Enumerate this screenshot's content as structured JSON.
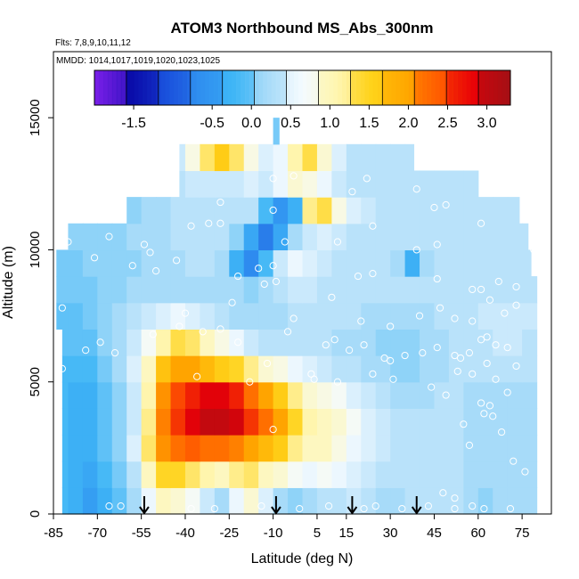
{
  "chart_data": {
    "type": "heatmap",
    "title": "ATOM3 Northbound MS_Abs_300nm",
    "flights_text": "Flts: 7,8,9,10,11,12",
    "dates_text": "MMDD: 1014,1017,1019,1020,1023,1025",
    "xlabel": "Latitude (deg N)",
    "ylabel": "Altitude (m)",
    "xlim": [
      -85,
      85
    ],
    "ylim": [
      0,
      17500
    ],
    "x_ticks": [
      -85,
      -70,
      -55,
      -40,
      -25,
      -10,
      5,
      15,
      30,
      45,
      60,
      75
    ],
    "y_ticks": [
      0,
      5000,
      10000,
      15000
    ],
    "colorbar": {
      "range": [
        -2.0,
        3.3
      ],
      "tick_values": [
        -1.5,
        -0.5,
        0.0,
        0.5,
        1.0,
        1.5,
        2.0,
        2.5,
        3.0
      ],
      "colors": [
        "#7a1fe8",
        "#0a0aa8",
        "#1a4fdc",
        "#2f8ff0",
        "#3fb6f6",
        "#a9dcf9",
        "#f4fbff",
        "#fff6b0",
        "#ffd21a",
        "#ffa800",
        "#ff5a00",
        "#e80008",
        "#a41015"
      ]
    },
    "arrows_latitude": [
      -54,
      -9,
      17,
      39
    ],
    "field": {
      "lat_min": -85,
      "lat_step": 5,
      "alt_min": 0,
      "alt_step": 1000,
      "values": [
        [
          -0.2,
          -0.3,
          -0.5,
          -0.3,
          -0.1,
          0.2,
          0.6,
          1.0,
          0.9,
          0.7,
          0.4,
          0.2,
          0.6,
          0.9,
          0.5,
          0.2,
          0.1,
          0.2,
          0.3,
          0.3,
          0.4,
          0.3,
          0.2,
          0.2,
          0.3,
          0.3,
          0.3,
          0.3,
          0.2,
          0.1,
          0.2,
          0.2,
          0.2,
          0.3,
          0.3
        ],
        [
          -0.2,
          -0.3,
          -0.4,
          -0.2,
          0.0,
          0.3,
          1.0,
          1.5,
          1.5,
          1.3,
          1.1,
          1.0,
          1.2,
          1.3,
          1.0,
          0.9,
          0.7,
          0.6,
          0.7,
          0.6,
          0.5,
          0.4,
          0.3,
          0.3,
          0.3,
          0.3,
          0.3,
          0.3,
          0.2,
          0.2,
          0.2,
          0.2,
          0.2,
          0.3,
          0.3
        ],
        [
          -0.2,
          -0.3,
          -0.3,
          -0.1,
          0.1,
          0.5,
          1.3,
          2.1,
          2.3,
          2.4,
          2.3,
          2.3,
          2.2,
          2.0,
          1.8,
          1.6,
          1.2,
          1.0,
          1.0,
          0.8,
          0.6,
          0.5,
          0.4,
          0.3,
          0.3,
          0.3,
          0.3,
          0.3,
          0.2,
          0.2,
          0.2,
          0.2,
          0.2,
          0.3,
          0.3
        ],
        [
          -0.2,
          -0.3,
          -0.3,
          -0.1,
          0.1,
          0.4,
          1.2,
          2.2,
          2.6,
          2.9,
          3.1,
          3.1,
          3.0,
          2.6,
          2.3,
          2.0,
          1.5,
          1.1,
          1.0,
          0.9,
          0.7,
          0.5,
          0.4,
          0.3,
          0.3,
          0.3,
          0.3,
          0.3,
          0.2,
          0.2,
          0.2,
          0.2,
          0.2,
          0.3,
          0.3
        ],
        [
          -0.2,
          -0.3,
          -0.3,
          -0.1,
          0.1,
          0.4,
          1.1,
          2.1,
          2.5,
          2.7,
          2.9,
          2.9,
          2.7,
          2.3,
          2.0,
          1.6,
          1.2,
          0.9,
          0.8,
          0.7,
          0.5,
          0.4,
          0.3,
          0.2,
          0.2,
          0.2,
          0.3,
          0.3,
          0.2,
          0.2,
          0.2,
          0.2,
          0.2,
          0.3,
          0.3
        ],
        [
          -0.2,
          -0.2,
          -0.2,
          0.0,
          0.2,
          0.5,
          1.0,
          1.7,
          2.0,
          2.0,
          1.8,
          1.6,
          1.5,
          1.2,
          0.9,
          0.8,
          0.6,
          0.5,
          0.4,
          0.3,
          0.3,
          0.2,
          0.2,
          0.1,
          0.1,
          0.2,
          0.2,
          0.3,
          0.3,
          0.3,
          0.3,
          0.3,
          0.3,
          0.3,
          0.3
        ],
        [
          -0.1,
          -0.1,
          -0.1,
          0.1,
          0.2,
          0.4,
          0.7,
          1.1,
          1.4,
          1.3,
          1.0,
          0.8,
          0.6,
          0.4,
          0.3,
          0.3,
          0.3,
          0.3,
          0.3,
          0.2,
          0.2,
          0.2,
          0.1,
          0.1,
          0.1,
          0.2,
          0.2,
          0.3,
          0.3,
          0.3,
          0.4,
          0.4,
          0.3,
          0.3,
          0.3
        ],
        [
          -0.1,
          -0.1,
          0.0,
          0.1,
          0.2,
          0.3,
          0.4,
          0.5,
          0.6,
          0.5,
          0.4,
          0.3,
          0.2,
          0.2,
          0.2,
          0.2,
          0.3,
          0.3,
          0.3,
          0.3,
          0.3,
          0.2,
          0.2,
          0.2,
          0.2,
          0.2,
          0.3,
          0.3,
          0.3,
          0.4,
          0.4,
          0.4,
          0.4,
          0.3,
          0.3
        ],
        [
          0.0,
          0.0,
          0.0,
          0.1,
          0.1,
          0.2,
          0.2,
          0.2,
          0.2,
          0.2,
          0.2,
          0.2,
          0.2,
          0.1,
          0.2,
          0.3,
          0.4,
          0.4,
          0.3,
          0.3,
          0.3,
          0.3,
          0.3,
          0.3,
          0.3,
          0.3,
          0.3,
          0.3,
          0.3,
          0.3,
          0.3,
          0.3,
          0.3,
          0.3,
          0.3
        ],
        [
          0.0,
          0.0,
          0.1,
          0.1,
          0.1,
          0.1,
          0.2,
          0.2,
          0.2,
          0.3,
          0.3,
          0.2,
          -0.3,
          -0.7,
          -0.2,
          0.4,
          0.6,
          0.5,
          0.4,
          0.3,
          0.3,
          0.3,
          0.3,
          0.2,
          -0.3,
          0.2,
          0.3,
          0.3,
          0.3,
          0.3,
          0.3,
          0.3,
          0.3,
          0.3,
          0.3
        ],
        [
          0.1,
          0.1,
          0.1,
          0.1,
          0.1,
          0.2,
          0.2,
          0.2,
          0.3,
          0.3,
          0.3,
          0.3,
          0.1,
          -0.4,
          -0.8,
          -0.4,
          0.2,
          0.4,
          0.5,
          0.4,
          0.3,
          0.3,
          0.3,
          0.3,
          0.3,
          0.3,
          0.3,
          0.3,
          0.3,
          0.3,
          0.3,
          0.3,
          0.3,
          0.3,
          0.3
        ],
        [
          0.1,
          0.1,
          0.1,
          0.1,
          0.1,
          0.1,
          0.2,
          0.2,
          0.3,
          0.3,
          0.3,
          0.3,
          0.3,
          0.3,
          -0.2,
          -0.6,
          -0.3,
          1.2,
          1.4,
          0.8,
          0.5,
          0.4,
          0.3,
          0.3,
          0.3,
          0.3,
          0.3,
          0.3,
          0.3,
          0.3,
          0.3,
          0.3,
          0.3,
          0.3,
          0.3
        ],
        [
          0.0,
          0.0,
          0.0,
          0.0,
          0.1,
          0.1,
          0.2,
          0.2,
          0.3,
          0.4,
          0.4,
          0.4,
          0.4,
          0.5,
          0.4,
          0.6,
          0.9,
          0.8,
          0.6,
          0.4,
          0.3,
          0.3,
          0.3,
          0.3,
          0.3,
          0.3,
          0.3,
          0.3,
          0.3,
          0.3,
          0.3,
          0.3,
          0.3,
          0.3,
          0.3
        ],
        [
          0.0,
          0.0,
          0.0,
          0.0,
          0.0,
          0.1,
          0.1,
          0.2,
          0.4,
          0.8,
          1.3,
          1.6,
          1.3,
          0.8,
          0.5,
          0.6,
          1.1,
          1.4,
          0.9,
          0.5,
          0.3,
          0.3,
          0.3,
          0.3,
          0.3,
          0.3,
          0.3,
          0.3,
          0.3,
          0.3,
          0.3,
          0.3,
          0.3,
          0.3,
          0.3
        ],
        [
          0.0,
          0.0,
          0.0,
          0.0,
          0.0,
          0.0,
          0.0,
          0.0,
          0.0,
          0.0,
          0.0,
          0.0,
          0.0,
          1.6,
          0.8,
          0.0,
          0.0,
          0.0,
          0.0,
          0.0,
          0.0,
          0.0,
          0.0,
          0.0,
          0.0,
          0.0,
          0.0,
          0.0,
          0.0,
          0.0,
          0.0,
          0.0,
          0.0,
          0.0,
          0.0
        ]
      ]
    },
    "observations": [
      [
        -66,
        0.3
      ],
      [
        -62,
        0.3
      ],
      [
        -38,
        0.2
      ],
      [
        -30,
        0.2
      ],
      [
        -14,
        0.3
      ],
      [
        -1,
        0.2
      ],
      [
        9,
        0.3
      ],
      [
        21,
        0.2
      ],
      [
        25,
        0.3
      ],
      [
        34,
        0.2
      ],
      [
        43,
        0.3
      ],
      [
        52,
        0.2
      ],
      [
        58,
        0.3
      ],
      [
        62,
        0.2
      ],
      [
        71,
        0.2
      ],
      [
        -10,
        3.2
      ],
      [
        -36,
        5.2
      ],
      [
        -18,
        5.0
      ],
      [
        4,
        5.1
      ],
      [
        12,
        5.0
      ],
      [
        24,
        5.3
      ],
      [
        31,
        5.1
      ],
      [
        44,
        4.8
      ],
      [
        49,
        4.5
      ],
      [
        53,
        5.4
      ],
      [
        58,
        5.3
      ],
      [
        61,
        4.2
      ],
      [
        62,
        3.8
      ],
      [
        64,
        4.1
      ],
      [
        66,
        5.1
      ],
      [
        70,
        4.6
      ],
      [
        72,
        2.0
      ],
      [
        76,
        1.6
      ],
      [
        55,
        3.4
      ],
      [
        57,
        2.6
      ],
      [
        48,
        0.8
      ],
      [
        52,
        0.6
      ],
      [
        68,
        3.1
      ],
      [
        65,
        3.7
      ],
      [
        -82,
        5.5
      ],
      [
        -74,
        6.2
      ],
      [
        -69,
        6.5
      ],
      [
        -64,
        6.1
      ],
      [
        -51,
        6.8
      ],
      [
        -42,
        7.1
      ],
      [
        -34,
        6.9
      ],
      [
        -28,
        7.0
      ],
      [
        -22,
        6.5
      ],
      [
        -12,
        5.7
      ],
      [
        -5,
        6.9
      ],
      [
        3,
        5.3
      ],
      [
        8,
        6.4
      ],
      [
        11,
        6.6
      ],
      [
        16,
        6.2
      ],
      [
        21,
        6.4
      ],
      [
        28,
        5.9
      ],
      [
        30,
        5.8
      ],
      [
        35,
        6.0
      ],
      [
        41,
        6.1
      ],
      [
        46,
        6.3
      ],
      [
        52,
        6.0
      ],
      [
        54,
        5.9
      ],
      [
        57,
        6.1
      ],
      [
        61,
        6.6
      ],
      [
        63,
        6.7
      ],
      [
        66,
        6.4
      ],
      [
        70,
        6.3
      ],
      [
        73,
        5.6
      ],
      [
        63,
        5.7
      ],
      [
        -82,
        7.8
      ],
      [
        -40,
        7.6
      ],
      [
        -24,
        8.0
      ],
      [
        -3,
        7.4
      ],
      [
        10,
        8.2
      ],
      [
        20,
        7.3
      ],
      [
        30,
        7.1
      ],
      [
        40,
        7.5
      ],
      [
        47,
        7.8
      ],
      [
        52,
        7.4
      ],
      [
        58,
        7.3
      ],
      [
        64,
        8.1
      ],
      [
        69,
        7.6
      ],
      [
        73,
        7.9
      ],
      [
        -71,
        9.7
      ],
      [
        -58,
        9.4
      ],
      [
        -50,
        9.2
      ],
      [
        -43,
        9.6
      ],
      [
        -22,
        9.0
      ],
      [
        -10,
        9.4
      ],
      [
        -9,
        8.8
      ],
      [
        -13,
        8.7
      ],
      [
        -15,
        9.3
      ],
      [
        19,
        9.0
      ],
      [
        24,
        9.1
      ],
      [
        39,
        10.0
      ],
      [
        46,
        8.9
      ],
      [
        58,
        8.5
      ],
      [
        61,
        8.5
      ],
      [
        67,
        8.8
      ],
      [
        73,
        8.6
      ],
      [
        79,
        10.0
      ],
      [
        -80,
        10.3
      ],
      [
        -66,
        10.5
      ],
      [
        -52,
        9.9
      ],
      [
        -54,
        10.2
      ],
      [
        -38,
        10.9
      ],
      [
        -32,
        11.0
      ],
      [
        -28,
        11.0
      ],
      [
        -6,
        10.3
      ],
      [
        12,
        10.3
      ],
      [
        24,
        10.9
      ],
      [
        46,
        10.2
      ],
      [
        61,
        11.0
      ],
      [
        -62,
        11.8
      ],
      [
        -28,
        11.8
      ],
      [
        -10,
        11.5
      ],
      [
        17,
        12.2
      ],
      [
        39,
        12.3
      ],
      [
        45,
        11.6
      ],
      [
        49,
        11.7
      ],
      [
        -10,
        12.7
      ],
      [
        -3,
        12.8
      ],
      [
        22,
        12.7
      ]
    ]
  }
}
